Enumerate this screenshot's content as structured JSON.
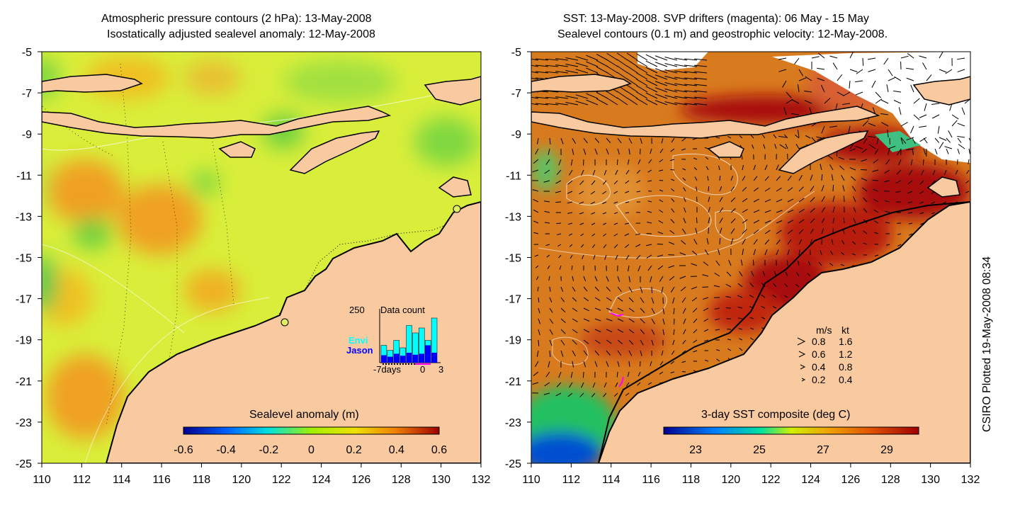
{
  "left_panel": {
    "title_line1": "Atmospheric pressure contours (2 hPa): 13-May-2008",
    "title_line2": "Isostatically adjusted sealevel anomaly: 12-May-2008",
    "colorbar": {
      "label": "Sealevel anomaly (m)",
      "ticks": [
        "-0.6",
        "-0.4",
        "-0.2",
        "0",
        "0.2",
        "0.4",
        "0.6"
      ],
      "range": [
        -0.6,
        0.6
      ]
    },
    "inset": {
      "title": "Data count",
      "ymax_label": "250",
      "series_envi": "Envi",
      "series_jason": "Jason",
      "x_start": "-7days",
      "x_zero": "0",
      "x_end": "3",
      "envi_color": "#00ffff",
      "jason_color": "#0000ff",
      "values_envi": [
        0.35,
        0.25,
        0.45,
        0.3,
        0.75,
        0.6,
        0.7,
        0.45,
        0.9
      ],
      "values_jason": [
        0.15,
        0.12,
        0.18,
        0.14,
        0.2,
        0.16,
        0.18,
        0.35,
        0.2
      ]
    }
  },
  "right_panel": {
    "title_line1": "SST: 13-May-2008. SVP drifters (magenta): 06 May - 15 May",
    "title_line2": "Sealevel contours (0.1 m) and geostrophic velocity: 12-May-2008.",
    "colorbar": {
      "label": "3-day SST composite (deg C)",
      "ticks": [
        "23",
        "25",
        "27",
        "29"
      ],
      "range": [
        22,
        30
      ]
    },
    "velocity_legend": {
      "header_ms": "m/s",
      "header_kt": "kt",
      "rows": [
        {
          "ms": "0.8",
          "kt": "1.6"
        },
        {
          "ms": "0.6",
          "kt": "1.2"
        },
        {
          "ms": "0.4",
          "kt": "0.8"
        },
        {
          "ms": "0.2",
          "kt": "0.4"
        }
      ]
    }
  },
  "axes": {
    "x_ticks": [
      "110",
      "112",
      "114",
      "116",
      "118",
      "120",
      "122",
      "124",
      "126",
      "128",
      "130",
      "132"
    ],
    "y_ticks": [
      "-5",
      "-7",
      "-9",
      "-11",
      "-13",
      "-15",
      "-17",
      "-19",
      "-21",
      "-23",
      "-25"
    ],
    "lon_range": [
      110,
      132
    ],
    "lat_range": [
      -25,
      -5
    ]
  },
  "credit": "CSIRO Plotted 19-May-2008 08:34",
  "colors": {
    "land": "#f9c9a0",
    "ocean_anomaly_base": "#d9ee3a",
    "sst_base": "#d87a1e",
    "sst_warm": "#a81010"
  }
}
